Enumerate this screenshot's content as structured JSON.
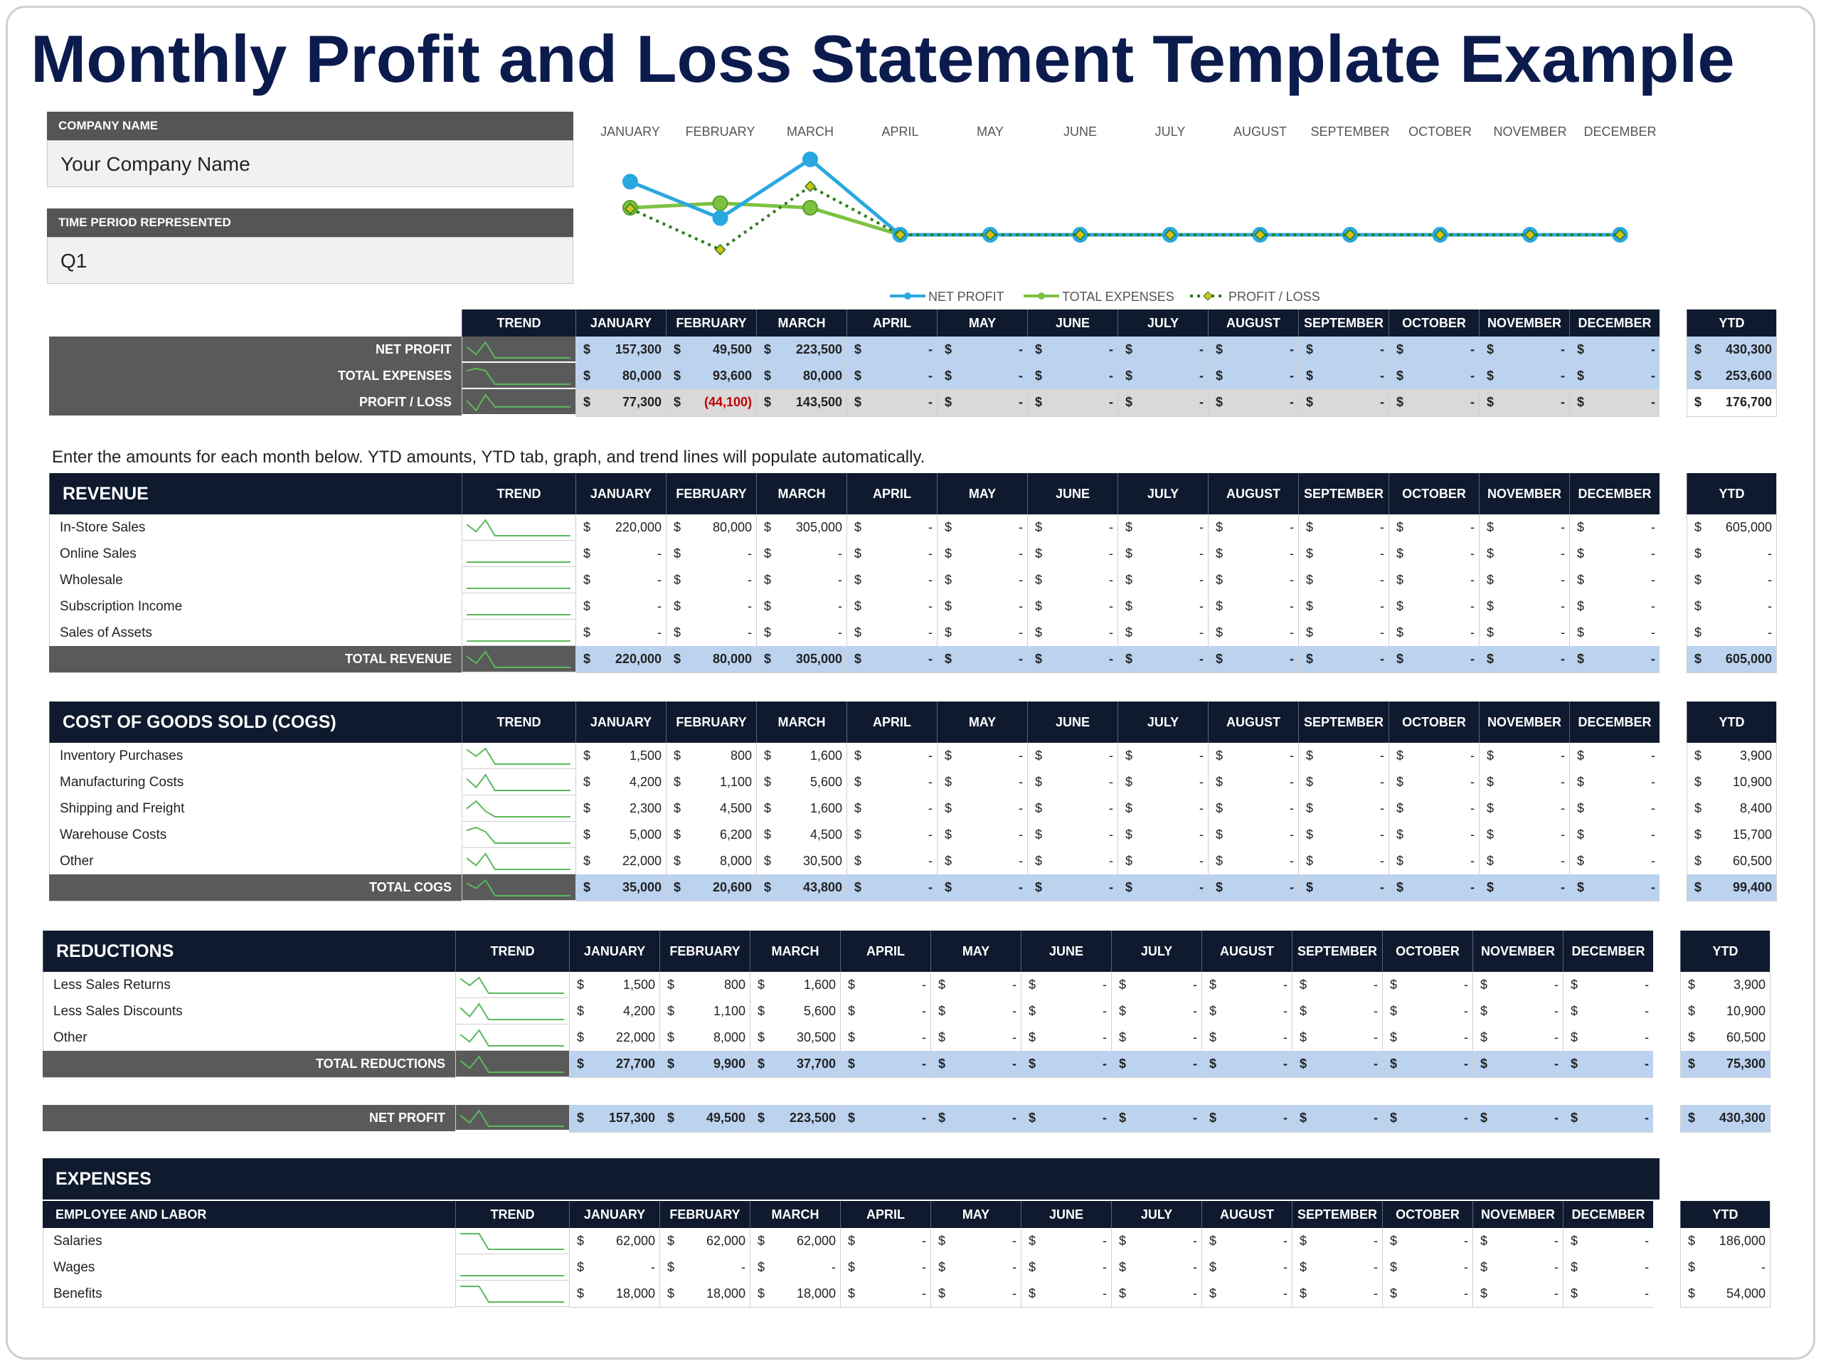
{
  "title": "Monthly Profit and Loss Statement Template Example",
  "company": {
    "label": "COMPANY NAME",
    "value": "Your Company Name"
  },
  "period": {
    "label": "TIME PERIOD REPRESENTED",
    "value": "Q1"
  },
  "instructions": "Enter the amounts for each month below. YTD amounts, YTD tab, graph, and trend lines will populate automatically.",
  "headers": {
    "trend": "TREND",
    "ytd": "YTD",
    "months": [
      "JANUARY",
      "FEBRUARY",
      "MARCH",
      "APRIL",
      "MAY",
      "JUNE",
      "JULY",
      "AUGUST",
      "SEPTEMBER",
      "OCTOBER",
      "NOVEMBER",
      "DECEMBER"
    ]
  },
  "currency": "$",
  "dash": "-",
  "colors": {
    "navy": "#0f1a2e",
    "gray_label": "#5a5a5a",
    "total_blue": "#bcd3f0",
    "net_profit_line": "#29a8e0",
    "total_expenses_line": "#7cc242",
    "profit_loss_line": "#2e7d1e",
    "negative": "#c00000"
  },
  "chart_data": {
    "type": "line",
    "categories": [
      "JANUARY",
      "FEBRUARY",
      "MARCH",
      "APRIL",
      "MAY",
      "JUNE",
      "JULY",
      "AUGUST",
      "SEPTEMBER",
      "OCTOBER",
      "NOVEMBER",
      "DECEMBER"
    ],
    "series": [
      {
        "name": "NET PROFIT",
        "values": [
          157300,
          49500,
          223500,
          0,
          0,
          0,
          0,
          0,
          0,
          0,
          0,
          0
        ]
      },
      {
        "name": "TOTAL EXPENSES",
        "values": [
          80000,
          93600,
          80000,
          0,
          0,
          0,
          0,
          0,
          0,
          0,
          0,
          0
        ]
      },
      {
        "name": "PROFIT / LOSS",
        "values": [
          77300,
          -44100,
          143500,
          0,
          0,
          0,
          0,
          0,
          0,
          0,
          0,
          0
        ]
      }
    ],
    "legend": "bottom"
  },
  "summary": {
    "rows": [
      {
        "label": "NET PROFIT",
        "values": [
          "157,300",
          "49,500",
          "223,500",
          "-",
          "-",
          "-",
          "-",
          "-",
          "-",
          "-",
          "-",
          "-"
        ],
        "ytd": "430,300"
      },
      {
        "label": "TOTAL EXPENSES",
        "values": [
          "80,000",
          "93,600",
          "80,000",
          "-",
          "-",
          "-",
          "-",
          "-",
          "-",
          "-",
          "-",
          "-"
        ],
        "ytd": "253,600"
      },
      {
        "label": "PROFIT / LOSS",
        "values": [
          "77,300",
          "(44,100)",
          "143,500",
          "-",
          "-",
          "-",
          "-",
          "-",
          "-",
          "-",
          "-",
          "-"
        ],
        "ytd": "176,700"
      }
    ]
  },
  "revenue": {
    "title": "REVENUE",
    "rows": [
      {
        "label": "In-Store Sales",
        "values": [
          "220,000",
          "80,000",
          "305,000",
          "-",
          "-",
          "-",
          "-",
          "-",
          "-",
          "-",
          "-",
          "-"
        ],
        "ytd": "605,000"
      },
      {
        "label": "Online Sales",
        "values": [
          "-",
          "-",
          "-",
          "-",
          "-",
          "-",
          "-",
          "-",
          "-",
          "-",
          "-",
          "-"
        ],
        "ytd": "-"
      },
      {
        "label": "Wholesale",
        "values": [
          "-",
          "-",
          "-",
          "-",
          "-",
          "-",
          "-",
          "-",
          "-",
          "-",
          "-",
          "-"
        ],
        "ytd": "-"
      },
      {
        "label": "Subscription Income",
        "values": [
          "-",
          "-",
          "-",
          "-",
          "-",
          "-",
          "-",
          "-",
          "-",
          "-",
          "-",
          "-"
        ],
        "ytd": "-"
      },
      {
        "label": "Sales of Assets",
        "values": [
          "-",
          "-",
          "-",
          "-",
          "-",
          "-",
          "-",
          "-",
          "-",
          "-",
          "-",
          "-"
        ],
        "ytd": "-"
      }
    ],
    "total": {
      "label": "TOTAL REVENUE",
      "values": [
        "220,000",
        "80,000",
        "305,000",
        "-",
        "-",
        "-",
        "-",
        "-",
        "-",
        "-",
        "-",
        "-"
      ],
      "ytd": "605,000"
    }
  },
  "cogs": {
    "title": "COST OF GOODS SOLD (COGS)",
    "rows": [
      {
        "label": "Inventory Purchases",
        "values": [
          "1,500",
          "800",
          "1,600",
          "-",
          "-",
          "-",
          "-",
          "-",
          "-",
          "-",
          "-",
          "-"
        ],
        "ytd": "3,900"
      },
      {
        "label": "Manufacturing Costs",
        "values": [
          "4,200",
          "1,100",
          "5,600",
          "-",
          "-",
          "-",
          "-",
          "-",
          "-",
          "-",
          "-",
          "-"
        ],
        "ytd": "10,900"
      },
      {
        "label": "Shipping and Freight",
        "values": [
          "2,300",
          "4,500",
          "1,600",
          "-",
          "-",
          "-",
          "-",
          "-",
          "-",
          "-",
          "-",
          "-"
        ],
        "ytd": "8,400"
      },
      {
        "label": "Warehouse Costs",
        "values": [
          "5,000",
          "6,200",
          "4,500",
          "-",
          "-",
          "-",
          "-",
          "-",
          "-",
          "-",
          "-",
          "-"
        ],
        "ytd": "15,700"
      },
      {
        "label": "Other",
        "values": [
          "22,000",
          "8,000",
          "30,500",
          "-",
          "-",
          "-",
          "-",
          "-",
          "-",
          "-",
          "-",
          "-"
        ],
        "ytd": "60,500"
      }
    ],
    "total": {
      "label": "TOTAL COGS",
      "values": [
        "35,000",
        "20,600",
        "43,800",
        "-",
        "-",
        "-",
        "-",
        "-",
        "-",
        "-",
        "-",
        "-"
      ],
      "ytd": "99,400"
    }
  },
  "reductions": {
    "title": "REDUCTIONS",
    "rows": [
      {
        "label": "Less Sales Returns",
        "values": [
          "1,500",
          "800",
          "1,600",
          "-",
          "-",
          "-",
          "-",
          "-",
          "-",
          "-",
          "-",
          "-"
        ],
        "ytd": "3,900"
      },
      {
        "label": "Less Sales Discounts",
        "values": [
          "4,200",
          "1,100",
          "5,600",
          "-",
          "-",
          "-",
          "-",
          "-",
          "-",
          "-",
          "-",
          "-"
        ],
        "ytd": "10,900"
      },
      {
        "label": "Other",
        "values": [
          "22,000",
          "8,000",
          "30,500",
          "-",
          "-",
          "-",
          "-",
          "-",
          "-",
          "-",
          "-",
          "-"
        ],
        "ytd": "60,500"
      }
    ],
    "total": {
      "label": "TOTAL REDUCTIONS",
      "values": [
        "27,700",
        "9,900",
        "37,700",
        "-",
        "-",
        "-",
        "-",
        "-",
        "-",
        "-",
        "-",
        "-"
      ],
      "ytd": "75,300"
    }
  },
  "net_profit": {
    "label": "NET PROFIT",
    "values": [
      "157,300",
      "49,500",
      "223,500",
      "-",
      "-",
      "-",
      "-",
      "-",
      "-",
      "-",
      "-",
      "-"
    ],
    "ytd": "430,300"
  },
  "expenses": {
    "title": "EXPENSES",
    "subtitle": "EMPLOYEE AND LABOR",
    "rows": [
      {
        "label": "Salaries",
        "values": [
          "62,000",
          "62,000",
          "62,000",
          "-",
          "-",
          "-",
          "-",
          "-",
          "-",
          "-",
          "-",
          "-"
        ],
        "ytd": "186,000"
      },
      {
        "label": "Wages",
        "values": [
          "-",
          "-",
          "-",
          "-",
          "-",
          "-",
          "-",
          "-",
          "-",
          "-",
          "-",
          "-"
        ],
        "ytd": "-"
      },
      {
        "label": "Benefits",
        "values": [
          "18,000",
          "18,000",
          "18,000",
          "-",
          "-",
          "-",
          "-",
          "-",
          "-",
          "-",
          "-",
          "-"
        ],
        "ytd": "54,000"
      }
    ]
  }
}
